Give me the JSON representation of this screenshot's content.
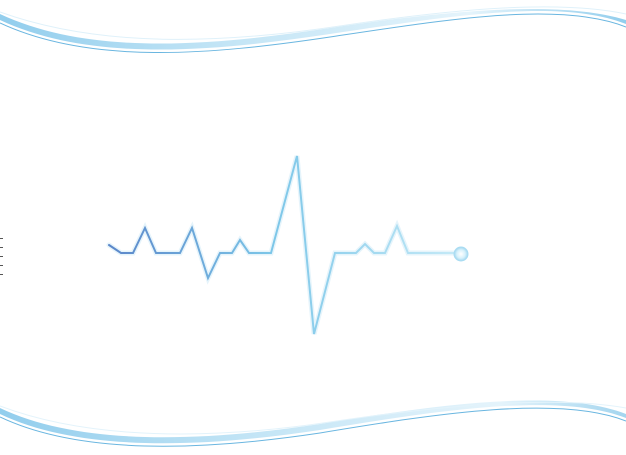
{
  "graphic": {
    "icon": "heartbeat-ecg-icon",
    "colors": {
      "wave_top_light": "#e3f3fb",
      "wave_top_mid": "#bfe3f5",
      "wave_top_dark": "#8ccbec",
      "wave_line": "#6ab6e0",
      "ecg_start": "#5b86c9",
      "ecg_mid": "#7cc6e8",
      "ecg_end": "#c9ecf8",
      "endpoint": "#bfe6f7",
      "background": "#ffffff"
    }
  }
}
